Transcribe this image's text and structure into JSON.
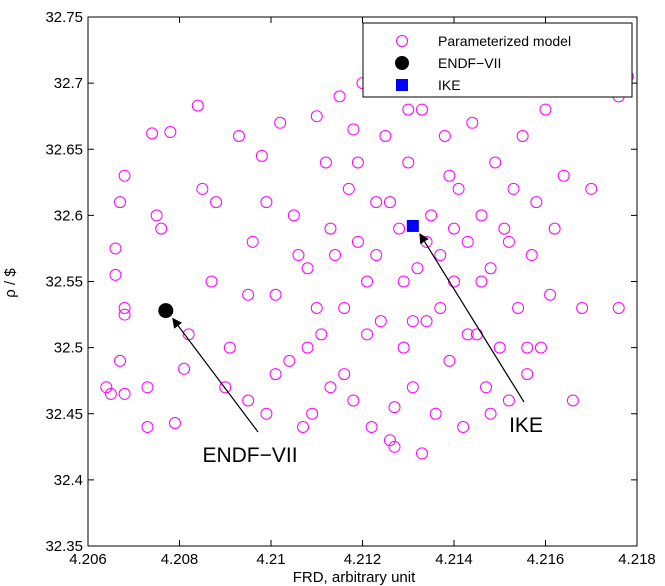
{
  "chart_data": {
    "type": "scatter",
    "title": "",
    "xlabel": "FRD, arbitrary unit",
    "ylabel": "ρ / $",
    "xlim": [
      4.206,
      4.218
    ],
    "ylim": [
      32.35,
      32.75
    ],
    "xticks": [
      4.206,
      4.208,
      4.21,
      4.212,
      4.214,
      4.216,
      4.218
    ],
    "xtick_labels": [
      "4.206",
      "4.208",
      "4.21",
      "4.212",
      "4.214",
      "4.216",
      "4.218"
    ],
    "yticks": [
      32.35,
      32.4,
      32.45,
      32.5,
      32.55,
      32.6,
      32.65,
      32.7,
      32.75
    ],
    "ytick_labels": [
      "32.35",
      "32.4",
      "32.45",
      "32.5",
      "32.55",
      "32.6",
      "32.65",
      "32.7",
      "32.75"
    ],
    "grid": false,
    "legend_position": "top-right",
    "colors": {
      "model": "#ff00ff",
      "endf": "#000000",
      "ike": "#0000ff"
    },
    "series": [
      {
        "name": "Parameterized model",
        "marker": "open-circle",
        "color": "#ff00ff",
        "points": [
          [
            4.2064,
            32.47
          ],
          [
            4.2065,
            32.465
          ],
          [
            4.2066,
            32.575
          ],
          [
            4.2066,
            32.555
          ],
          [
            4.2067,
            32.61
          ],
          [
            4.2068,
            32.63
          ],
          [
            4.2068,
            32.53
          ],
          [
            4.2068,
            32.525
          ],
          [
            4.2067,
            32.49
          ],
          [
            4.2068,
            32.465
          ],
          [
            4.2073,
            32.44
          ],
          [
            4.2073,
            32.47
          ],
          [
            4.2074,
            32.662
          ],
          [
            4.2075,
            32.6
          ],
          [
            4.2076,
            32.59
          ],
          [
            4.2078,
            32.663
          ],
          [
            4.2079,
            32.443
          ],
          [
            4.2081,
            32.484
          ],
          [
            4.2082,
            32.51
          ],
          [
            4.2084,
            32.683
          ],
          [
            4.2085,
            32.62
          ],
          [
            4.2087,
            32.55
          ],
          [
            4.2088,
            32.61
          ],
          [
            4.209,
            32.47
          ],
          [
            4.2091,
            32.5
          ],
          [
            4.2093,
            32.66
          ],
          [
            4.2095,
            32.46
          ],
          [
            4.2096,
            32.58
          ],
          [
            4.2098,
            32.645
          ],
          [
            4.2099,
            32.45
          ],
          [
            4.2101,
            32.54
          ],
          [
            4.2102,
            32.67
          ],
          [
            4.2104,
            32.49
          ],
          [
            4.2105,
            32.6
          ],
          [
            4.2107,
            32.44
          ],
          [
            4.2108,
            32.56
          ],
          [
            4.211,
            32.675
          ],
          [
            4.2111,
            32.51
          ],
          [
            4.2112,
            32.64
          ],
          [
            4.2113,
            32.47
          ],
          [
            4.2114,
            32.57
          ],
          [
            4.2115,
            32.69
          ],
          [
            4.2116,
            32.53
          ],
          [
            4.2117,
            32.62
          ],
          [
            4.2118,
            32.46
          ],
          [
            4.2119,
            32.58
          ],
          [
            4.212,
            32.7
          ],
          [
            4.2121,
            32.55
          ],
          [
            4.2122,
            32.44
          ],
          [
            4.2123,
            32.61
          ],
          [
            4.2124,
            32.52
          ],
          [
            4.2125,
            32.66
          ],
          [
            4.2126,
            32.43
          ],
          [
            4.2127,
            32.425
          ],
          [
            4.2128,
            32.59
          ],
          [
            4.2129,
            32.5
          ],
          [
            4.213,
            32.64
          ],
          [
            4.2131,
            32.47
          ],
          [
            4.2132,
            32.56
          ],
          [
            4.2133,
            32.68
          ],
          [
            4.2134,
            32.52
          ],
          [
            4.2135,
            32.6
          ],
          [
            4.2136,
            32.45
          ],
          [
            4.2137,
            32.57
          ],
          [
            4.2138,
            32.66
          ],
          [
            4.2139,
            32.49
          ],
          [
            4.214,
            32.55
          ],
          [
            4.2141,
            32.62
          ],
          [
            4.2142,
            32.44
          ],
          [
            4.2143,
            32.58
          ],
          [
            4.2144,
            32.67
          ],
          [
            4.2145,
            32.51
          ],
          [
            4.2146,
            32.6
          ],
          [
            4.2147,
            32.47
          ],
          [
            4.2148,
            32.56
          ],
          [
            4.2149,
            32.64
          ],
          [
            4.215,
            32.5
          ],
          [
            4.2151,
            32.59
          ],
          [
            4.2152,
            32.46
          ],
          [
            4.2153,
            32.62
          ],
          [
            4.2154,
            32.53
          ],
          [
            4.2155,
            32.66
          ],
          [
            4.2156,
            32.48
          ],
          [
            4.2157,
            32.57
          ],
          [
            4.2158,
            32.61
          ],
          [
            4.2159,
            32.5
          ],
          [
            4.216,
            32.68
          ],
          [
            4.2161,
            32.54
          ],
          [
            4.2162,
            32.59
          ],
          [
            4.2164,
            32.63
          ],
          [
            4.2166,
            32.46
          ],
          [
            4.2168,
            32.53
          ],
          [
            4.217,
            32.62
          ],
          [
            4.2176,
            32.53
          ],
          [
            4.2178,
            32.705
          ],
          [
            4.2176,
            32.69
          ],
          [
            4.2156,
            32.5
          ],
          [
            4.2152,
            32.58
          ],
          [
            4.2148,
            32.45
          ],
          [
            4.2139,
            32.63
          ],
          [
            4.2133,
            32.42
          ],
          [
            4.2109,
            32.45
          ],
          [
            4.2099,
            32.61
          ],
          [
            4.2095,
            32.54
          ],
          [
            4.2101,
            32.48
          ],
          [
            4.2106,
            32.57
          ],
          [
            4.211,
            32.53
          ],
          [
            4.2113,
            32.59
          ],
          [
            4.2116,
            32.48
          ],
          [
            4.2119,
            32.64
          ],
          [
            4.2121,
            32.51
          ],
          [
            4.2123,
            32.57
          ],
          [
            4.2126,
            32.61
          ],
          [
            4.2129,
            32.55
          ],
          [
            4.2131,
            32.52
          ],
          [
            4.2134,
            32.58
          ],
          [
            4.2137,
            32.53
          ],
          [
            4.214,
            32.59
          ],
          [
            4.2143,
            32.51
          ],
          [
            4.2146,
            32.55
          ],
          [
            4.2124,
            32.7
          ],
          [
            4.213,
            32.68
          ],
          [
            4.2127,
            32.455
          ],
          [
            4.2118,
            32.665
          ],
          [
            4.2108,
            32.5
          ]
        ]
      },
      {
        "name": "ENDF−VII",
        "marker": "filled-circle",
        "color": "#000000",
        "points": [
          [
            4.2077,
            32.528
          ]
        ]
      },
      {
        "name": "IKE",
        "marker": "filled-square",
        "color": "#0000ff",
        "points": [
          [
            4.2131,
            32.592
          ]
        ]
      }
    ],
    "annotations": [
      {
        "text": "ENDF−VII",
        "target": [
          4.2077,
          32.528
        ]
      },
      {
        "text": "IKE",
        "target": [
          4.2131,
          32.592
        ]
      }
    ]
  }
}
